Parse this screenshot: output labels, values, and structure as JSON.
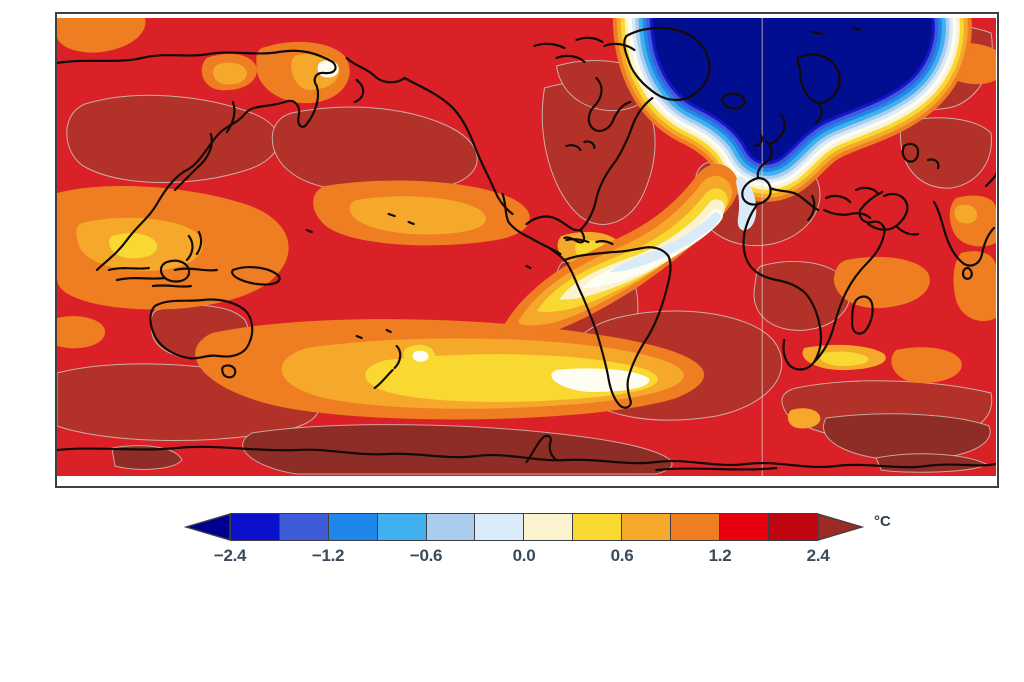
{
  "figure": {
    "kind": "global temperature anomaly map",
    "unit_label": "°C"
  },
  "palette": {
    "base_red": "#da2127",
    "dark_red": "#b23128",
    "maroon": "#8e2d26",
    "orange": "#ef7d22",
    "amber": "#f5a829",
    "yellow": "#f8d831",
    "cream": "#fbf3d0",
    "white_hot": "#fefdf2",
    "pale_blue": "#d9eaf8",
    "light_blue": "#aaccee",
    "sky_blue": "#41b0ee",
    "dodger_blue": "#1f86ea",
    "royal_blue": "#3f5cd8",
    "deep_blue": "#1515cd",
    "navy": "#000e8f",
    "brick": "#9b2b24",
    "coastline": "#140b06",
    "contour_gray": "#cfc4bd",
    "frame_border": "#3f3f3f"
  },
  "chart_data": {
    "type": "heatmap",
    "subtype": "filled-contour world map of temperature anomaly",
    "title": "",
    "projection": "equirectangular, Pacific-centered (Americas in middle, Europe/Africa right)",
    "colorbar": {
      "orientation": "horizontal",
      "unit": "°C",
      "levels": [
        -2.4,
        -1.8,
        -1.2,
        -0.9,
        -0.6,
        -0.3,
        0.0,
        0.3,
        0.6,
        0.9,
        1.2,
        1.8,
        2.4
      ],
      "tick_labels": [
        "−2.4",
        "−1.2",
        "−0.6",
        "0.0",
        "0.6",
        "1.2",
        "2.4"
      ],
      "cell_colors": [
        "#0b10cc",
        "#3f5cd8",
        "#1f86ea",
        "#41b0ee",
        "#aaccee",
        "#d9eaf8",
        "#fbf3d0",
        "#f8d831",
        "#f5a829",
        "#ef7d22",
        "#e8000f",
        "#c00511"
      ],
      "under_arrow_color": "#00008f",
      "over_arrow_color": "#9b2b24"
    },
    "map_readings": [
      {
        "region": "North Atlantic subpolar gyre / Nordic Seas 'cold blob' (Greenland to Scandinavia)",
        "anomaly_c": -2.4,
        "note": "deep blue core below −2.4 °C"
      },
      {
        "region": "Tongue southwest of the cold blob toward Iberia and the subtropical Atlantic / Caribbean",
        "anomaly_c": -0.3,
        "note": "pale blue to cream band near 0 °C"
      },
      {
        "region": "Most global oceans and land",
        "anomaly_c": 1.5,
        "note": "dominant red shading 1.2–1.8 °C"
      },
      {
        "region": "Interior continents, N. Pacific patches, Sahara, S. Africa, Australia, Southern Ocean band",
        "anomaly_c": 2.0,
        "note": "dark red 1.8–2.4 °C"
      },
      {
        "region": "Antarctic coastal band and scattered patches",
        "anomaly_c": 2.4,
        "note": "maroon, above 2.4 °C"
      },
      {
        "region": "Tropical west/central Pacific and South Pacific bands",
        "anomaly_c": 0.8,
        "note": "orange to yellow 0.3–0.9 °C"
      },
      {
        "region": "Bering Strait spot, SE of New Zealand spot, S. Pacific core",
        "anomaly_c": 0.1,
        "note": "small cream/white minima near 0 °C"
      }
    ]
  }
}
